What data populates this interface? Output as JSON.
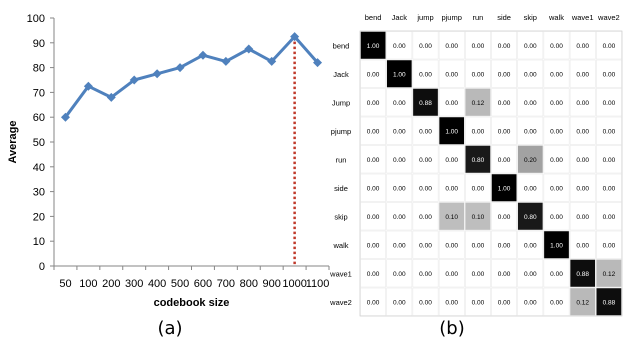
{
  "chart_data": [
    {
      "type": "line",
      "xlabel": "codebook size",
      "ylabel": "Average",
      "categories": [
        "50",
        "100",
        "200",
        "300",
        "400",
        "500",
        "600",
        "700",
        "800",
        "900",
        "1000",
        "1100"
      ],
      "values": [
        60,
        72.5,
        68,
        75,
        77.5,
        80,
        85,
        82.5,
        87.5,
        82.5,
        92.5,
        82
      ],
      "ylim": [
        0,
        100
      ],
      "yticks": [
        0,
        10,
        20,
        30,
        40,
        50,
        60,
        70,
        80,
        90,
        100
      ],
      "marker": "diamond",
      "line_color": "#4f81bd",
      "highlight": {
        "category": "1000",
        "color": "#c0392b",
        "style": "dotted vertical line"
      },
      "grid": false
    },
    {
      "type": "heatmap",
      "labels": [
        "bend",
        "Jack",
        "jump",
        "pjump",
        "run",
        "side",
        "skip",
        "walk",
        "wave1",
        "wave2"
      ],
      "row_labels": [
        "bend",
        "Jack",
        "Jump",
        "pjump",
        "run",
        "side",
        "skip",
        "walk",
        "wave1",
        "wave2"
      ],
      "matrix": [
        [
          "1.00",
          "0.00",
          "0.00",
          "0.00",
          "0.00",
          "0.00",
          "0.00",
          "0.00",
          "0.00",
          "0.00"
        ],
        [
          "0.00",
          "1.00",
          "0.00",
          "0.00",
          "0.00",
          "0.00",
          "0.00",
          "0.00",
          "0.00",
          "0.00"
        ],
        [
          "0.00",
          "0.00",
          "0.88",
          "0.00",
          "0.12",
          "0.00",
          "0.00",
          "0.00",
          "0.00",
          "0.00"
        ],
        [
          "0.00",
          "0.00",
          "0.00",
          "1.00",
          "0.00",
          "0.00",
          "0.00",
          "0.00",
          "0.00",
          "0.00"
        ],
        [
          "0.00",
          "0.00",
          "0.00",
          "0.00",
          "0.80",
          "0.00",
          "0.20",
          "0.00",
          "0.00",
          "0.00"
        ],
        [
          "0.00",
          "0.00",
          "0.00",
          "0.00",
          "0.00",
          "1.00",
          "0.00",
          "0.00",
          "0.00",
          "0.00"
        ],
        [
          "0.00",
          "0.00",
          "0.00",
          "0.10",
          "0.10",
          "0.00",
          "0.80",
          "0.00",
          "0.00",
          "0.00"
        ],
        [
          "0.00",
          "0.00",
          "0.00",
          "0.00",
          "0.00",
          "0.00",
          "0.00",
          "1.00",
          "0.00",
          "0.00"
        ],
        [
          "0.00",
          "0.00",
          "0.00",
          "0.00",
          "0.00",
          "0.00",
          "0.00",
          "0.00",
          "0.88",
          "0.12"
        ],
        [
          "0.00",
          "0.00",
          "0.00",
          "0.00",
          "0.00",
          "0.00",
          "0.00",
          "0.00",
          "0.12",
          "0.88"
        ]
      ],
      "color_scale": "white-to-black"
    }
  ],
  "captions": {
    "a": "(a)",
    "b": "(b)"
  }
}
